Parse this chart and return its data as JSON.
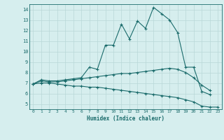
{
  "xlabel": "Humidex (Indice chaleur)",
  "ylabel": "",
  "background_color": "#d6eeee",
  "grid_color": "#b8d8d8",
  "line_color": "#1a6b6b",
  "xlim": [
    -0.5,
    23.5
  ],
  "ylim": [
    4.5,
    14.5
  ],
  "xticks": [
    0,
    1,
    2,
    3,
    4,
    5,
    6,
    7,
    8,
    9,
    10,
    11,
    12,
    13,
    14,
    15,
    16,
    17,
    18,
    19,
    20,
    21,
    22,
    23
  ],
  "yticks": [
    5,
    6,
    7,
    8,
    9,
    10,
    11,
    12,
    13,
    14
  ],
  "line1_x": [
    0,
    1,
    2,
    3,
    4,
    5,
    6,
    7,
    8,
    9,
    10,
    11,
    12,
    13,
    14,
    15,
    16,
    17,
    18,
    19,
    20,
    21,
    22
  ],
  "line1_y": [
    6.9,
    7.3,
    7.2,
    7.2,
    7.3,
    7.4,
    7.5,
    8.5,
    8.3,
    10.6,
    10.6,
    12.6,
    11.2,
    12.9,
    12.2,
    14.2,
    13.6,
    13.0,
    11.8,
    8.5,
    8.5,
    6.2,
    5.9
  ],
  "line2_x": [
    0,
    1,
    2,
    3,
    4,
    5,
    6,
    7,
    8,
    9,
    10,
    11,
    12,
    13,
    14,
    15,
    16,
    17,
    18,
    19,
    20,
    21,
    22
  ],
  "line2_y": [
    6.9,
    7.2,
    7.1,
    7.1,
    7.2,
    7.3,
    7.4,
    7.5,
    7.6,
    7.7,
    7.8,
    7.9,
    7.9,
    8.0,
    8.1,
    8.2,
    8.3,
    8.4,
    8.3,
    8.0,
    7.5,
    6.8,
    6.3
  ],
  "line3_x": [
    0,
    1,
    2,
    3,
    4,
    5,
    6,
    7,
    8,
    9,
    10,
    11,
    12,
    13,
    14,
    15,
    16,
    17,
    18,
    19,
    20,
    21,
    22,
    23
  ],
  "line3_y": [
    6.9,
    7.0,
    7.0,
    6.9,
    6.8,
    6.7,
    6.7,
    6.6,
    6.6,
    6.5,
    6.4,
    6.3,
    6.2,
    6.1,
    6.0,
    5.9,
    5.8,
    5.7,
    5.6,
    5.4,
    5.2,
    4.8,
    4.7,
    4.7
  ]
}
